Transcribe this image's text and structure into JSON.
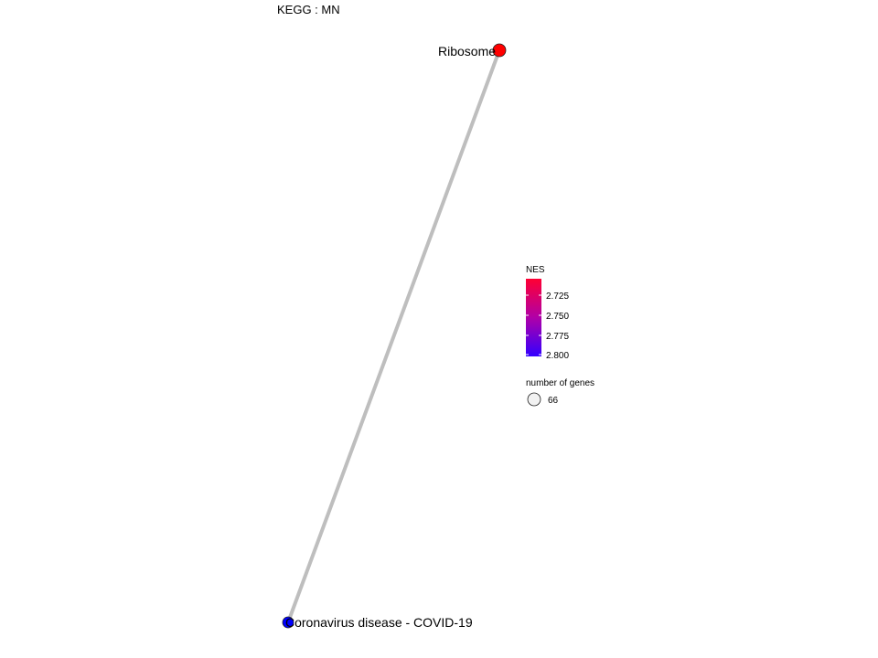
{
  "title": "KEGG : MN",
  "chart_data": {
    "type": "network",
    "nodes": [
      {
        "id": "ribosome",
        "label": "Ribosome",
        "nes": 2.71,
        "size": 66,
        "color": "#ff0000"
      },
      {
        "id": "covid",
        "label": "Coronavirus disease - COVID-19",
        "nes": 2.81,
        "size": 66,
        "color": "#0000ff"
      }
    ],
    "edges": [
      {
        "source": "ribosome",
        "target": "covid",
        "color": "#bebebe"
      }
    ],
    "legend": {
      "color": {
        "title": "NES",
        "ticks": [
          "2.725",
          "2.750",
          "2.775",
          "2.800"
        ],
        "low_color": "#ff0033",
        "high_color": "#3300ff"
      },
      "size": {
        "title": "number of genes",
        "value": "66"
      }
    }
  }
}
